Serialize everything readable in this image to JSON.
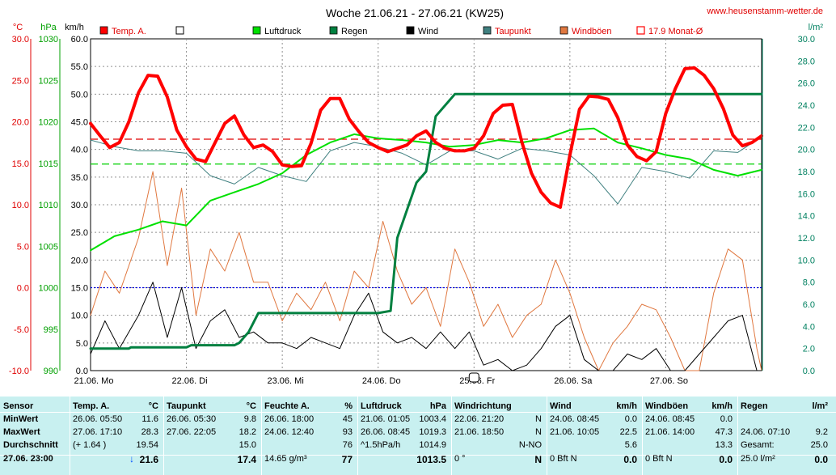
{
  "chart_data": {
    "type": "line",
    "title": "Woche 21.06.21 - 27.06.21 (KW25)",
    "site": "www.heusenstamm-wetter.de",
    "axes": {
      "temp": {
        "unit": "°C",
        "min": -10,
        "max": 30,
        "ticks": [
          "30.0",
          "25.0",
          "20.0",
          "15.0",
          "10.0",
          "5.0",
          "0.0",
          "-5.0",
          "-10.0"
        ],
        "color": "#e00000"
      },
      "pressure": {
        "unit": "hPa",
        "min": 990,
        "max": 1030,
        "ticks": [
          "1030",
          "1025",
          "1020",
          "1015",
          "1010",
          "1005",
          "1000",
          "995",
          "990"
        ],
        "color": "#00a000"
      },
      "wind": {
        "unit": "km/h",
        "min": 0,
        "max": 60,
        "ticks": [
          "60.0",
          "55.0",
          "50.0",
          "45.0",
          "40.0",
          "35.0",
          "30.0",
          "25.0",
          "20.0",
          "15.0",
          "10.0",
          "5.0",
          "0.0"
        ],
        "color": "#000000"
      },
      "rain": {
        "unit": "l/m²",
        "min": 0,
        "max": 30,
        "ticks": [
          "30.0",
          "28.0",
          "26.0",
          "24.0",
          "22.0",
          "20.0",
          "18.0",
          "16.0",
          "14.0",
          "12.0",
          "10.0",
          "8.0",
          "6.0",
          "4.0",
          "2.0",
          "0.0"
        ],
        "color": "#008060"
      }
    },
    "x_days": [
      "21.06. Mo",
      "22.06. Di",
      "23.06. Mi",
      "24.06. Do",
      "25.06. Fr",
      "26.06. Sa",
      "27.06. So"
    ],
    "reference_lines": {
      "temp_month_mean": 17.9,
      "pressure_mean": 1014.9,
      "freezing": 0.0
    },
    "legend": [
      {
        "label": "Temp. A.",
        "color": "#ff0000",
        "style": "filled"
      },
      {
        "label": "",
        "color": "#ffffff",
        "style": "empty"
      },
      {
        "label": "Luftdruck",
        "color": "#00e000",
        "style": "filled"
      },
      {
        "label": "Regen",
        "color": "#008040",
        "style": "filled"
      },
      {
        "label": "Wind",
        "color": "#000000",
        "style": "filled"
      },
      {
        "label": "Taupunkt",
        "color": "#408080",
        "style": "filled"
      },
      {
        "label": "Windböen",
        "color": "#e07840",
        "style": "filled"
      },
      {
        "label": "17.9 Monat-Ø",
        "color": "#ff0000",
        "style": "outline"
      }
    ],
    "series": [
      {
        "name": "Temp. A.",
        "color": "#ff0000",
        "width": 4,
        "x": [
          0,
          0.1,
          0.2,
          0.3,
          0.4,
          0.5,
          0.6,
          0.7,
          0.8,
          0.9,
          1.0,
          1.1,
          1.2,
          1.3,
          1.4,
          1.5,
          1.6,
          1.7,
          1.8,
          1.9,
          2.0,
          2.1,
          2.2,
          2.3,
          2.4,
          2.5,
          2.6,
          2.7,
          2.8,
          2.9,
          3.0,
          3.1,
          3.2,
          3.3,
          3.4,
          3.5,
          3.6,
          3.7,
          3.8,
          3.9,
          4.0,
          4.1,
          4.2,
          4.3,
          4.4,
          4.5,
          4.6,
          4.7,
          4.8,
          4.9,
          5.0,
          5.1,
          5.2,
          5.3,
          5.4,
          5.5,
          5.6,
          5.7,
          5.8,
          5.9,
          6.0,
          6.1,
          6.2,
          6.3,
          6.4,
          6.5,
          6.6,
          6.7,
          6.8,
          6.9,
          7.0
        ],
        "values": [
          19.8,
          18.3,
          16.9,
          17.5,
          20.0,
          23.5,
          25.6,
          25.5,
          23.0,
          19.0,
          17.0,
          15.5,
          15.2,
          17.5,
          19.8,
          20.7,
          18.4,
          16.9,
          17.2,
          16.4,
          14.8,
          14.6,
          14.7,
          17.4,
          21.4,
          22.8,
          22.8,
          20.3,
          18.8,
          17.5,
          16.9,
          16.4,
          16.8,
          17.2,
          18.3,
          18.9,
          17.5,
          16.8,
          16.5,
          16.5,
          16.8,
          18.3,
          21.0,
          22.0,
          22.1,
          17.5,
          13.8,
          11.5,
          10.2,
          9.7,
          16.0,
          21.5,
          23.1,
          23.0,
          22.7,
          20.5,
          17.2,
          15.8,
          15.3,
          16.4,
          21.0,
          24.0,
          26.4,
          26.5,
          25.6,
          24.0,
          21.6,
          18.4,
          17.1,
          17.5,
          18.3
        ]
      },
      {
        "name": "Luftdruck",
        "color": "#00e000",
        "width": 2,
        "x": [
          0,
          0.25,
          0.5,
          0.75,
          1.0,
          1.25,
          1.5,
          1.75,
          2.0,
          2.25,
          2.5,
          2.75,
          3.0,
          3.25,
          3.5,
          3.75,
          4.0,
          4.25,
          4.5,
          4.75,
          5.0,
          5.25,
          5.5,
          5.75,
          6.0,
          6.25,
          6.5,
          6.75,
          7.0
        ],
        "values": [
          1004.5,
          1006.2,
          1007.0,
          1008.0,
          1007.5,
          1010.5,
          1011.5,
          1012.5,
          1013.8,
          1016.0,
          1017.5,
          1018.5,
          1018.0,
          1017.8,
          1017.5,
          1017.0,
          1017.2,
          1017.8,
          1017.5,
          1018.0,
          1019.0,
          1019.2,
          1017.5,
          1016.8,
          1016.0,
          1015.5,
          1014.2,
          1013.5,
          1014.2
        ]
      },
      {
        "name": "Taupunkt",
        "color": "#408080",
        "width": 1,
        "x": [
          0,
          0.25,
          0.5,
          0.75,
          1.0,
          1.25,
          1.5,
          1.75,
          2.0,
          2.25,
          2.5,
          2.75,
          3.0,
          3.25,
          3.5,
          3.75,
          4.0,
          4.25,
          4.5,
          4.75,
          5.0,
          5.25,
          5.5,
          5.75,
          6.0,
          6.25,
          6.5,
          6.75,
          7.0
        ],
        "values": [
          17.8,
          17.0,
          16.5,
          16.5,
          16.2,
          13.5,
          12.5,
          14.5,
          13.5,
          12.8,
          16.5,
          17.5,
          17.0,
          16.2,
          14.8,
          16.5,
          16.5,
          15.5,
          16.8,
          16.5,
          16.0,
          13.5,
          10.1,
          14.5,
          14.0,
          13.2,
          16.5,
          16.3,
          18.2
        ]
      },
      {
        "name": "Windböen",
        "color": "#e07840",
        "width": 1,
        "x": [
          0,
          0.15,
          0.3,
          0.5,
          0.65,
          0.8,
          0.95,
          1.1,
          1.25,
          1.4,
          1.55,
          1.7,
          1.85,
          2.0,
          2.15,
          2.3,
          2.45,
          2.6,
          2.75,
          2.9,
          3.05,
          3.2,
          3.35,
          3.5,
          3.65,
          3.8,
          3.95,
          4.1,
          4.25,
          4.4,
          4.55,
          4.7,
          4.85,
          5.0,
          5.15,
          5.3,
          5.45,
          5.6,
          5.75,
          5.9,
          6.05,
          6.2,
          6.35,
          6.5,
          6.65,
          6.8,
          6.95,
          7.0
        ],
        "values": [
          10,
          18,
          14,
          24,
          36,
          19,
          33,
          10,
          22,
          18,
          25,
          16,
          16,
          9,
          14,
          11,
          16,
          9,
          18,
          15,
          27,
          18,
          12,
          15,
          8,
          22,
          16,
          8,
          12,
          6,
          10,
          12,
          20,
          14,
          6,
          0,
          5,
          8,
          12,
          11,
          6,
          0,
          0,
          14,
          22,
          20,
          4,
          0
        ]
      },
      {
        "name": "Wind",
        "color": "#000000",
        "width": 1,
        "x": [
          0,
          0.15,
          0.3,
          0.5,
          0.65,
          0.8,
          0.95,
          1.1,
          1.25,
          1.4,
          1.55,
          1.7,
          1.85,
          2.0,
          2.15,
          2.3,
          2.45,
          2.6,
          2.75,
          2.9,
          3.05,
          3.2,
          3.35,
          3.5,
          3.65,
          3.8,
          3.95,
          4.1,
          4.25,
          4.4,
          4.55,
          4.7,
          4.85,
          5.0,
          5.15,
          5.3,
          5.45,
          5.6,
          5.75,
          5.9,
          6.05,
          6.2,
          6.35,
          6.5,
          6.65,
          6.8,
          6.95,
          7.0
        ],
        "values": [
          3,
          9,
          4,
          10,
          16,
          6,
          15,
          4,
          9,
          11,
          6,
          7,
          5,
          5,
          4,
          6,
          5,
          4,
          10,
          14,
          7,
          5,
          6,
          4,
          7,
          4,
          7,
          1,
          2,
          0,
          1,
          4,
          8,
          10,
          2,
          0,
          0,
          3,
          2,
          4,
          0,
          0,
          3,
          6,
          9,
          10,
          0,
          0
        ]
      },
      {
        "name": "Regen",
        "color": "#008040",
        "width": 3,
        "x": [
          0,
          0.4,
          0.42,
          1.0,
          1.05,
          1.5,
          1.55,
          1.65,
          1.75,
          3.0,
          3.13,
          3.2,
          3.4,
          3.5,
          3.6,
          3.8,
          4.0,
          7.0
        ],
        "values": [
          2.0,
          2.0,
          2.1,
          2.1,
          2.3,
          2.3,
          2.5,
          3.5,
          5.2,
          5.2,
          5.4,
          12.0,
          17.0,
          18.0,
          23.0,
          25.0,
          25.0,
          25.0
        ]
      }
    ]
  },
  "stats": {
    "columns": [
      {
        "header": "Sensor",
        "unit": "",
        "rows": [
          "MinWert",
          "MaxWert",
          "Durchschnitt"
        ],
        "foot": "27.06. 23:00"
      },
      {
        "header": "Temp. A.",
        "unit": "°C",
        "rows": [
          [
            "26.06.  05:50",
            "11.6"
          ],
          [
            "27.06.  17:10",
            "28.3"
          ],
          [
            "(+ 1.64 )",
            "19.54"
          ]
        ],
        "foot": "21.6",
        "foot_arrow": "↓"
      },
      {
        "header": "Taupunkt",
        "unit": "°C",
        "rows": [
          [
            "26.06.  05:30",
            "9.8"
          ],
          [
            "27.06.  22:05",
            "18.2"
          ],
          [
            "",
            "15.0"
          ]
        ],
        "foot": "17.4"
      },
      {
        "header": "Feuchte A.",
        "unit": "%",
        "rows": [
          [
            "26.06.  18:00",
            "45"
          ],
          [
            "24.06.  12:40",
            "93"
          ],
          [
            "",
            "76"
          ]
        ],
        "foot_left": "14.65 g/m³",
        "foot": "77"
      },
      {
        "header": "Luftdruck",
        "unit": "hPa",
        "rows": [
          [
            "21.06.  01:05",
            "1003.4"
          ],
          [
            "26.06.  08:45",
            "1019.3"
          ],
          [
            "^1.5hPa/h",
            "1014.9"
          ]
        ],
        "foot": "1013.5"
      },
      {
        "header": "Windrichtung",
        "unit": "",
        "rows": [
          [
            "22.06.  21:20",
            "N"
          ],
          [
            "21.06.  18:50",
            "N"
          ],
          [
            "",
            "N-NO"
          ]
        ],
        "foot_left": "0 °",
        "foot": "N"
      },
      {
        "header": "Wind",
        "unit": "km/h",
        "rows": [
          [
            "24.06.  08:45",
            "0.0"
          ],
          [
            "21.06.  10:05",
            "22.5"
          ],
          [
            "",
            "5.6"
          ]
        ],
        "foot_left": "0 Bft N",
        "foot": "0.0"
      },
      {
        "header": "Windböen",
        "unit": "km/h",
        "rows": [
          [
            "24.06.  08:45",
            "0.0"
          ],
          [
            "21.06.  14:00",
            "47.3"
          ],
          [
            "",
            "13.3"
          ]
        ],
        "foot_left": "0 Bft N",
        "foot": "0.0"
      },
      {
        "header": "Regen",
        "unit": "l/m²",
        "rows": [
          [
            "",
            ""
          ],
          [
            "24.06.  07:10",
            "9.2"
          ],
          [
            "Gesamt:",
            "25.0"
          ]
        ],
        "foot_left": "25.0 l/m²",
        "foot": "0.0"
      }
    ]
  }
}
